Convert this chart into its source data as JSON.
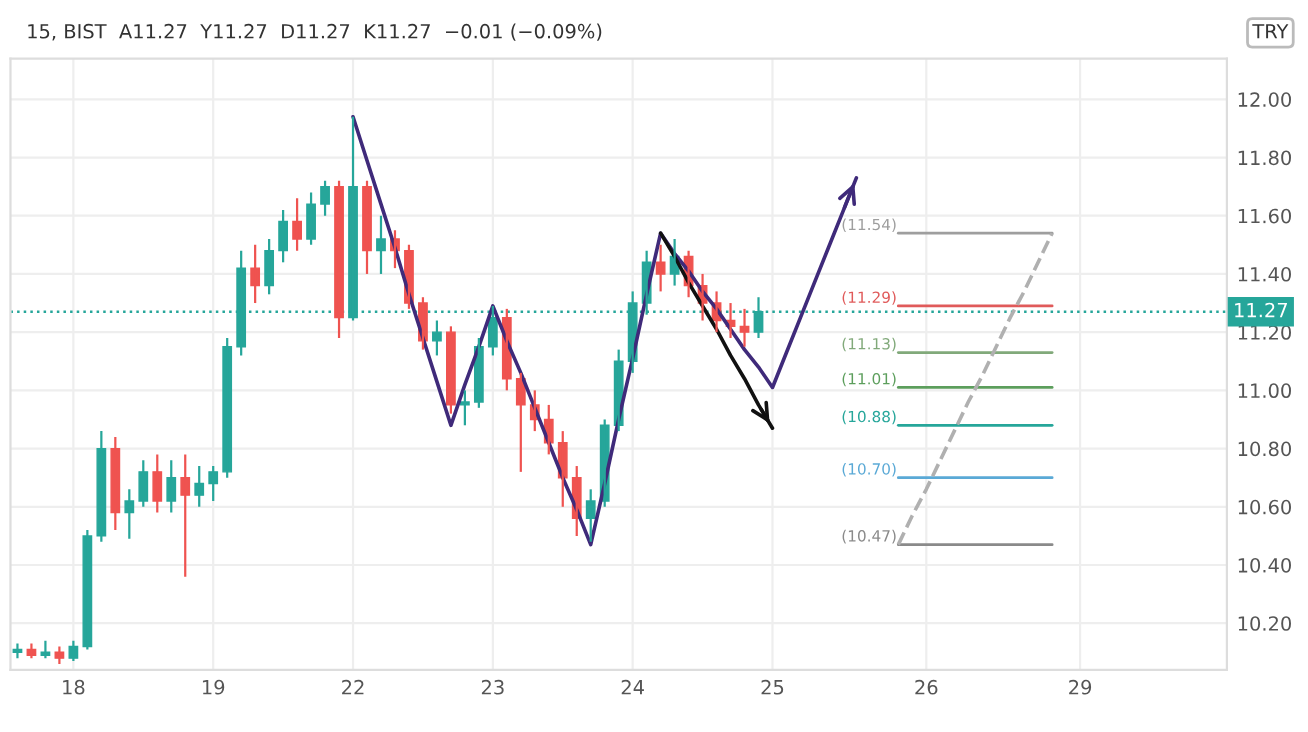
{
  "chart_data": {
    "type": "candlestick",
    "title": "15, BIST  A11.27  Y11.27  D11.27  K11.27  −0.01 (−0.09%)",
    "annotations": [
      "TRY"
    ],
    "categories": [
      null,
      null,
      null,
      null,
      "18",
      null,
      null,
      null,
      null,
      null,
      null,
      null,
      null,
      null,
      "19",
      null,
      null,
      null,
      null,
      null,
      null,
      null,
      null,
      null,
      "22",
      null,
      null,
      null,
      null,
      null,
      null,
      null,
      null,
      null,
      "23",
      null,
      null,
      null,
      null,
      null,
      null,
      null,
      null,
      null,
      "24",
      null,
      null,
      null,
      null,
      null,
      null,
      null,
      null,
      null,
      "25",
      null,
      null,
      null,
      null,
      null,
      null,
      null,
      null,
      null,
      null,
      "26",
      null,
      null,
      null,
      null,
      null,
      null,
      null,
      null,
      null,
      null,
      "29",
      null,
      null,
      null,
      null,
      null,
      null,
      null,
      null,
      null,
      null
    ],
    "ohlc": [
      [
        10.1,
        10.13,
        10.08,
        10.11
      ],
      [
        10.11,
        10.13,
        10.08,
        10.09
      ],
      [
        10.09,
        10.14,
        10.08,
        10.1
      ],
      [
        10.1,
        10.12,
        10.06,
        10.08
      ],
      [
        10.08,
        10.14,
        10.07,
        10.12
      ],
      [
        10.12,
        10.52,
        10.11,
        10.5
      ],
      [
        10.5,
        10.86,
        10.48,
        10.8
      ],
      [
        10.8,
        10.84,
        10.52,
        10.58
      ],
      [
        10.58,
        10.66,
        10.49,
        10.62
      ],
      [
        10.62,
        10.76,
        10.6,
        10.72
      ],
      [
        10.72,
        10.78,
        10.58,
        10.62
      ],
      [
        10.62,
        10.76,
        10.58,
        10.7
      ],
      [
        10.7,
        10.78,
        10.36,
        10.64
      ],
      [
        10.64,
        10.74,
        10.6,
        10.68
      ],
      [
        10.68,
        10.74,
        10.62,
        10.72
      ],
      [
        10.72,
        11.18,
        10.7,
        11.15
      ],
      [
        11.15,
        11.48,
        11.12,
        11.42
      ],
      [
        11.42,
        11.5,
        11.3,
        11.36
      ],
      [
        11.36,
        11.52,
        11.33,
        11.48
      ],
      [
        11.48,
        11.62,
        11.44,
        11.58
      ],
      [
        11.58,
        11.66,
        11.48,
        11.52
      ],
      [
        11.52,
        11.68,
        11.5,
        11.64
      ],
      [
        11.64,
        11.72,
        11.6,
        11.7
      ],
      [
        11.7,
        11.72,
        11.18,
        11.25
      ],
      [
        11.25,
        11.94,
        11.24,
        11.7
      ],
      [
        11.7,
        11.72,
        11.4,
        11.48
      ],
      [
        11.48,
        11.6,
        11.4,
        11.52
      ],
      [
        11.52,
        11.55,
        11.42,
        11.48
      ],
      [
        11.48,
        11.5,
        11.28,
        11.3
      ],
      [
        11.3,
        11.32,
        11.14,
        11.17
      ],
      [
        11.17,
        11.24,
        11.12,
        11.2
      ],
      [
        11.2,
        11.22,
        10.92,
        10.95
      ],
      [
        10.95,
        11.0,
        10.88,
        10.96
      ],
      [
        10.96,
        11.18,
        10.94,
        11.15
      ],
      [
        11.15,
        11.29,
        11.12,
        11.25
      ],
      [
        11.25,
        11.28,
        11.0,
        11.04
      ],
      [
        11.04,
        11.06,
        10.72,
        10.95
      ],
      [
        10.95,
        11.0,
        10.86,
        10.9
      ],
      [
        10.9,
        10.95,
        10.78,
        10.82
      ],
      [
        10.82,
        10.86,
        10.6,
        10.7
      ],
      [
        10.7,
        10.74,
        10.5,
        10.56
      ],
      [
        10.56,
        10.66,
        10.48,
        10.62
      ],
      [
        10.62,
        10.9,
        10.6,
        10.88
      ],
      [
        10.88,
        11.14,
        10.86,
        11.1
      ],
      [
        11.1,
        11.34,
        11.06,
        11.3
      ],
      [
        11.3,
        11.48,
        11.26,
        11.44
      ],
      [
        11.44,
        11.5,
        11.34,
        11.4
      ],
      [
        11.4,
        11.52,
        11.36,
        11.46
      ],
      [
        11.46,
        11.48,
        11.32,
        11.36
      ],
      [
        11.36,
        11.4,
        11.24,
        11.3
      ],
      [
        11.3,
        11.34,
        11.2,
        11.24
      ],
      [
        11.24,
        11.3,
        11.18,
        11.22
      ],
      [
        11.22,
        11.28,
        11.15,
        11.2
      ],
      [
        11.2,
        11.32,
        11.18,
        11.27
      ],
      null,
      null,
      null,
      null,
      null,
      null,
      null,
      null,
      null,
      null,
      null,
      null,
      null,
      null,
      null,
      null,
      null,
      null,
      null,
      null,
      null,
      null,
      null,
      null,
      null,
      null,
      null,
      null,
      null,
      null,
      null,
      null,
      null
    ],
    "colors": [
      "#26a69a",
      "#ef5350",
      "#26a69a",
      "#ef5350",
      "#26a69a",
      "#26a69a",
      "#26a69a",
      "#ef5350",
      "#26a69a",
      "#26a69a",
      "#ef5350",
      "#26a69a",
      "#ef5350",
      "#26a69a",
      "#26a69a",
      "#26a69a",
      "#26a69a",
      "#ef5350",
      "#26a69a",
      "#26a69a",
      "#ef5350",
      "#26a69a",
      "#26a69a",
      "#ef5350",
      "#26a69a",
      "#ef5350",
      "#26a69a",
      "#ef5350",
      "#ef5350",
      "#ef5350",
      "#26a69a",
      "#ef5350",
      "#26a69a",
      "#26a69a",
      "#26a69a",
      "#ef5350",
      "#ef5350",
      "#ef5350",
      "#ef5350",
      "#ef5350",
      "#ef5350",
      "#26a69a",
      "#26a69a",
      "#26a69a",
      "#26a69a",
      "#26a69a",
      "#ef5350",
      "#26a69a",
      "#ef5350",
      "#ef5350",
      "#ef5350",
      "#ef5350",
      "#ef5350",
      "#26a69a",
      null,
      null,
      null,
      null,
      null,
      null,
      null,
      null,
      null,
      null,
      null,
      null,
      null,
      null,
      null,
      null,
      null,
      null,
      null,
      null,
      null,
      null,
      null,
      null,
      null,
      null,
      null,
      null,
      null,
      null,
      null,
      null,
      null
    ],
    "series": [
      {
        "type": "line",
        "color": "#3f2a7a",
        "line_style": "solid",
        "values": [
          null,
          null,
          null,
          null,
          null,
          null,
          null,
          null,
          null,
          null,
          null,
          null,
          null,
          null,
          null,
          null,
          null,
          null,
          null,
          null,
          null,
          null,
          null,
          null,
          11.94,
          11.79,
          11.64,
          11.49,
          11.33,
          11.18,
          11.03,
          10.88,
          11.02,
          11.15,
          11.29,
          11.17,
          11.06,
          10.94,
          10.82,
          10.7,
          10.59,
          10.47,
          10.68,
          10.9,
          11.11,
          11.33,
          11.54,
          11.47,
          11.41,
          11.34,
          11.28,
          11.21,
          11.14,
          11.08,
          11.01,
          11.13,
          11.25,
          11.37,
          11.49,
          11.61,
          11.73,
          null,
          null,
          null,
          null,
          null,
          null,
          null,
          null,
          null,
          null,
          null,
          null,
          null,
          null,
          null,
          null,
          null,
          null,
          null,
          null,
          null,
          null,
          null,
          null,
          null,
          null
        ]
      },
      {
        "type": "line",
        "color": "#111111",
        "line_style": "solid",
        "values": [
          null,
          null,
          null,
          null,
          null,
          null,
          null,
          null,
          null,
          null,
          null,
          null,
          null,
          null,
          null,
          null,
          null,
          null,
          null,
          null,
          null,
          null,
          null,
          null,
          null,
          null,
          null,
          null,
          null,
          null,
          null,
          null,
          null,
          null,
          null,
          null,
          null,
          null,
          null,
          null,
          null,
          null,
          null,
          null,
          null,
          null,
          11.54,
          11.46,
          11.37,
          11.29,
          11.21,
          11.12,
          11.04,
          10.95,
          10.87,
          null,
          null,
          null,
          null,
          null,
          null,
          null,
          null,
          null,
          null,
          null,
          null,
          null,
          null,
          null,
          null,
          null,
          null,
          null,
          null,
          null,
          null,
          null,
          null,
          null,
          null,
          null,
          null,
          null,
          null,
          null,
          null
        ]
      },
      {
        "type": "line",
        "color": "#b0b0b0",
        "line_style": "dashed",
        "values": [
          null,
          null,
          null,
          null,
          null,
          null,
          null,
          null,
          null,
          null,
          null,
          null,
          null,
          null,
          null,
          null,
          null,
          null,
          null,
          null,
          null,
          null,
          null,
          null,
          null,
          null,
          null,
          null,
          null,
          null,
          null,
          null,
          null,
          null,
          null,
          null,
          null,
          null,
          null,
          null,
          null,
          null,
          null,
          null,
          null,
          null,
          null,
          null,
          null,
          null,
          null,
          null,
          null,
          null,
          null,
          null,
          null,
          null,
          null,
          null,
          null,
          null,
          null,
          10.47,
          10.57,
          10.66,
          10.76,
          10.86,
          10.96,
          11.05,
          11.15,
          11.25,
          11.34,
          11.44,
          11.54,
          null,
          null,
          null,
          null,
          null,
          null,
          null,
          null,
          null,
          null,
          null,
          null
        ]
      }
    ],
    "ref_lines": [
      {
        "axis": "y",
        "value": 11.54,
        "label": "(11.54)",
        "color": "#9e9e9e"
      },
      {
        "axis": "y",
        "value": 11.29,
        "label": "(11.29)",
        "color": "#e05a5a"
      },
      {
        "axis": "y",
        "value": 11.13,
        "label": "(11.13)",
        "color": "#81a97a"
      },
      {
        "axis": "y",
        "value": 11.01,
        "label": "(11.01)",
        "color": "#5c9e5c"
      },
      {
        "axis": "y",
        "value": 10.88,
        "label": "(10.88)",
        "color": "#26a69a"
      },
      {
        "axis": "y",
        "value": 10.7,
        "label": "(10.70)",
        "color": "#5aa9d6"
      },
      {
        "axis": "y",
        "value": 10.47,
        "label": "(10.47)",
        "color": "#8a8a8a"
      },
      {
        "axis": "y",
        "value": 11.27,
        "label": "11.27",
        "color": "#26a69a",
        "line_style": "dotted"
      }
    ],
    "ylim": [
      10.04,
      12.14
    ],
    "yticks": [
      {
        "value": 10.2,
        "label": "10.20"
      },
      {
        "value": 10.4,
        "label": "10.40"
      },
      {
        "value": 10.6,
        "label": "10.60"
      },
      {
        "value": 10.8,
        "label": "10.80"
      },
      {
        "value": 11.0,
        "label": "11.00"
      },
      {
        "value": 11.2,
        "label": "11.20"
      },
      {
        "value": 11.4,
        "label": "11.40"
      },
      {
        "value": 11.6,
        "label": "11.60"
      },
      {
        "value": 11.8,
        "label": "11.80"
      },
      {
        "value": 12.0,
        "label": "12.00"
      }
    ],
    "grid": true,
    "marker": "none"
  }
}
